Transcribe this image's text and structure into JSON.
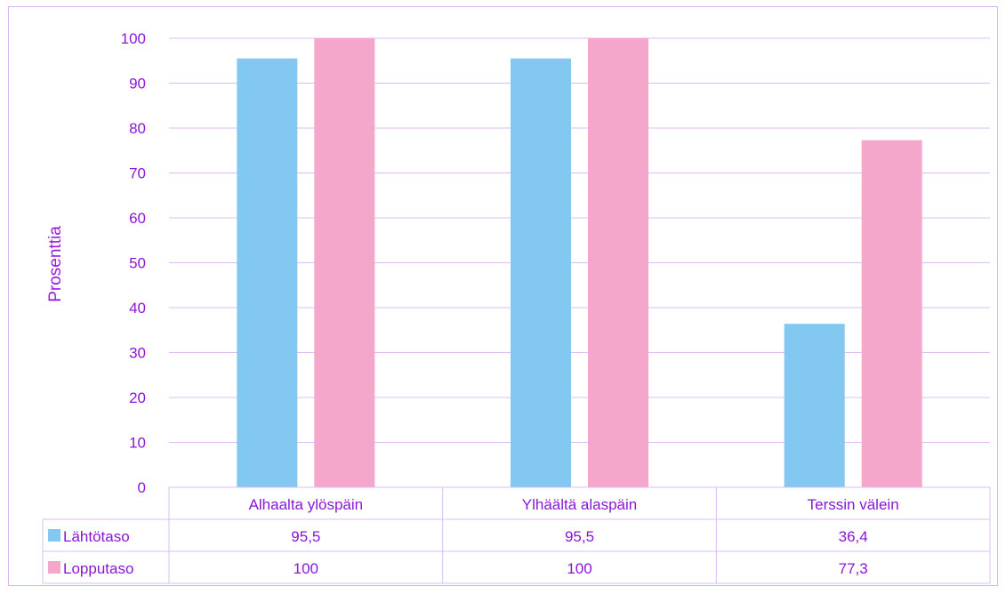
{
  "chart_data": {
    "type": "bar",
    "categories": [
      "Alhaalta ylöspäin",
      "Ylhäältä alaspäin",
      "Terssin välein"
    ],
    "series": [
      {
        "name": "Lähtötaso",
        "values": [
          95.5,
          95.5,
          36.4
        ],
        "labels": [
          "95,5",
          "95,5",
          "36,4"
        ],
        "color": "#82c8f0"
      },
      {
        "name": "Lopputaso",
        "values": [
          100,
          100,
          77.3
        ],
        "labels": [
          "100",
          "100",
          "77,3"
        ],
        "color": "#f4a6cb"
      }
    ],
    "ylabel": "Prosenttia",
    "ylim": [
      0,
      100
    ],
    "yticks": [
      "0",
      "10",
      "20",
      "30",
      "40",
      "50",
      "60",
      "70",
      "80",
      "90",
      "100"
    ],
    "grid": true,
    "legend": "data-table",
    "text_color": "#8a16d6",
    "grid_color": "#dcbcf2"
  }
}
